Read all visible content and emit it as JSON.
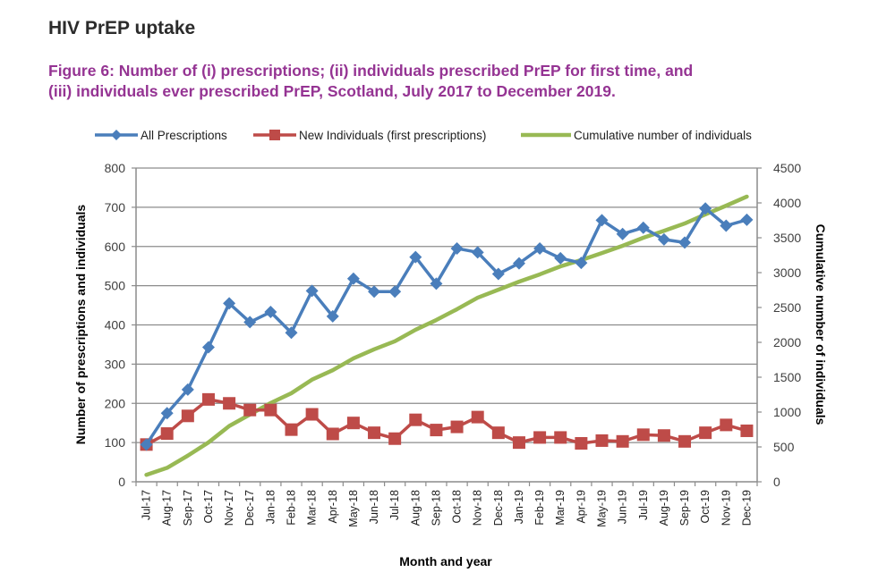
{
  "header": {
    "section_title": "HIV PrEP uptake",
    "figure_title_line1": "Figure 6: Number of (i) prescriptions; (ii) individuals prescribed PrEP for first time, and",
    "figure_title_line2": "(iii) individuals ever prescribed PrEP, Scotland, July 2017 to December 2019."
  },
  "colors": {
    "all_prescriptions": "#4a7ebb",
    "new_individuals": "#be4b48",
    "cumulative": "#98b954",
    "title": "#953493"
  },
  "chart_data": {
    "type": "line",
    "title": "Figure 6: Number of (i) prescriptions; (ii) individuals prescribed PrEP for first time, and (iii) individuals ever prescribed PrEP, Scotland, July 2017 to December 2019.",
    "xlabel": "Month and year",
    "ylabel": "Number of prescriptions and individuals",
    "y2label": "Cumulative number of individuals",
    "ylim": [
      0,
      800
    ],
    "y2lim": [
      0,
      4500
    ],
    "yticks": [
      "0",
      "100",
      "200",
      "300",
      "400",
      "500",
      "600",
      "700",
      "800"
    ],
    "y2ticks": [
      "0",
      "500",
      "1000",
      "1500",
      "2000",
      "2500",
      "3000",
      "3500",
      "4000",
      "4500"
    ],
    "grid": true,
    "legend_position": "top",
    "categories": [
      "Jul-17",
      "Aug-17",
      "Sep-17",
      "Oct-17",
      "Nov-17",
      "Dec-17",
      "Jan-18",
      "Feb-18",
      "Mar-18",
      "Apr-18",
      "May-18",
      "Jun-18",
      "Jul-18",
      "Aug-18",
      "Sep-18",
      "Oct-18",
      "Nov-18",
      "Dec-18",
      "Jan-19",
      "Feb-19",
      "Mar-19",
      "Apr-19",
      "May-19",
      "Jun-19",
      "Jul-19",
      "Aug-19",
      "Sep-19",
      "Oct-19",
      "Nov-19",
      "Dec-19"
    ],
    "series": [
      {
        "name": "All Prescriptions",
        "axis": "left",
        "marker": "diamond",
        "values": [
          95,
          175,
          235,
          343,
          455,
          407,
          433,
          380,
          487,
          422,
          518,
          485,
          485,
          573,
          505,
          595,
          585,
          530,
          557,
          595,
          570,
          558,
          667,
          632,
          648,
          618,
          610,
          697,
          653,
          668
        ]
      },
      {
        "name": "New Individuals (first prescriptions)",
        "axis": "left",
        "marker": "square",
        "values": [
          95,
          123,
          168,
          210,
          200,
          183,
          183,
          133,
          172,
          122,
          150,
          125,
          110,
          158,
          132,
          140,
          165,
          125,
          100,
          113,
          113,
          98,
          105,
          103,
          120,
          118,
          103,
          125,
          145,
          130
        ]
      },
      {
        "name": "Cumulative number of individuals",
        "axis": "right",
        "marker": "none",
        "values": [
          100,
          200,
          375,
          565,
          800,
          965,
          1130,
          1270,
          1465,
          1600,
          1770,
          1900,
          2015,
          2180,
          2320,
          2475,
          2640,
          2755,
          2870,
          2975,
          3090,
          3180,
          3280,
          3385,
          3500,
          3600,
          3705,
          3835,
          3960,
          4090
        ]
      }
    ]
  }
}
